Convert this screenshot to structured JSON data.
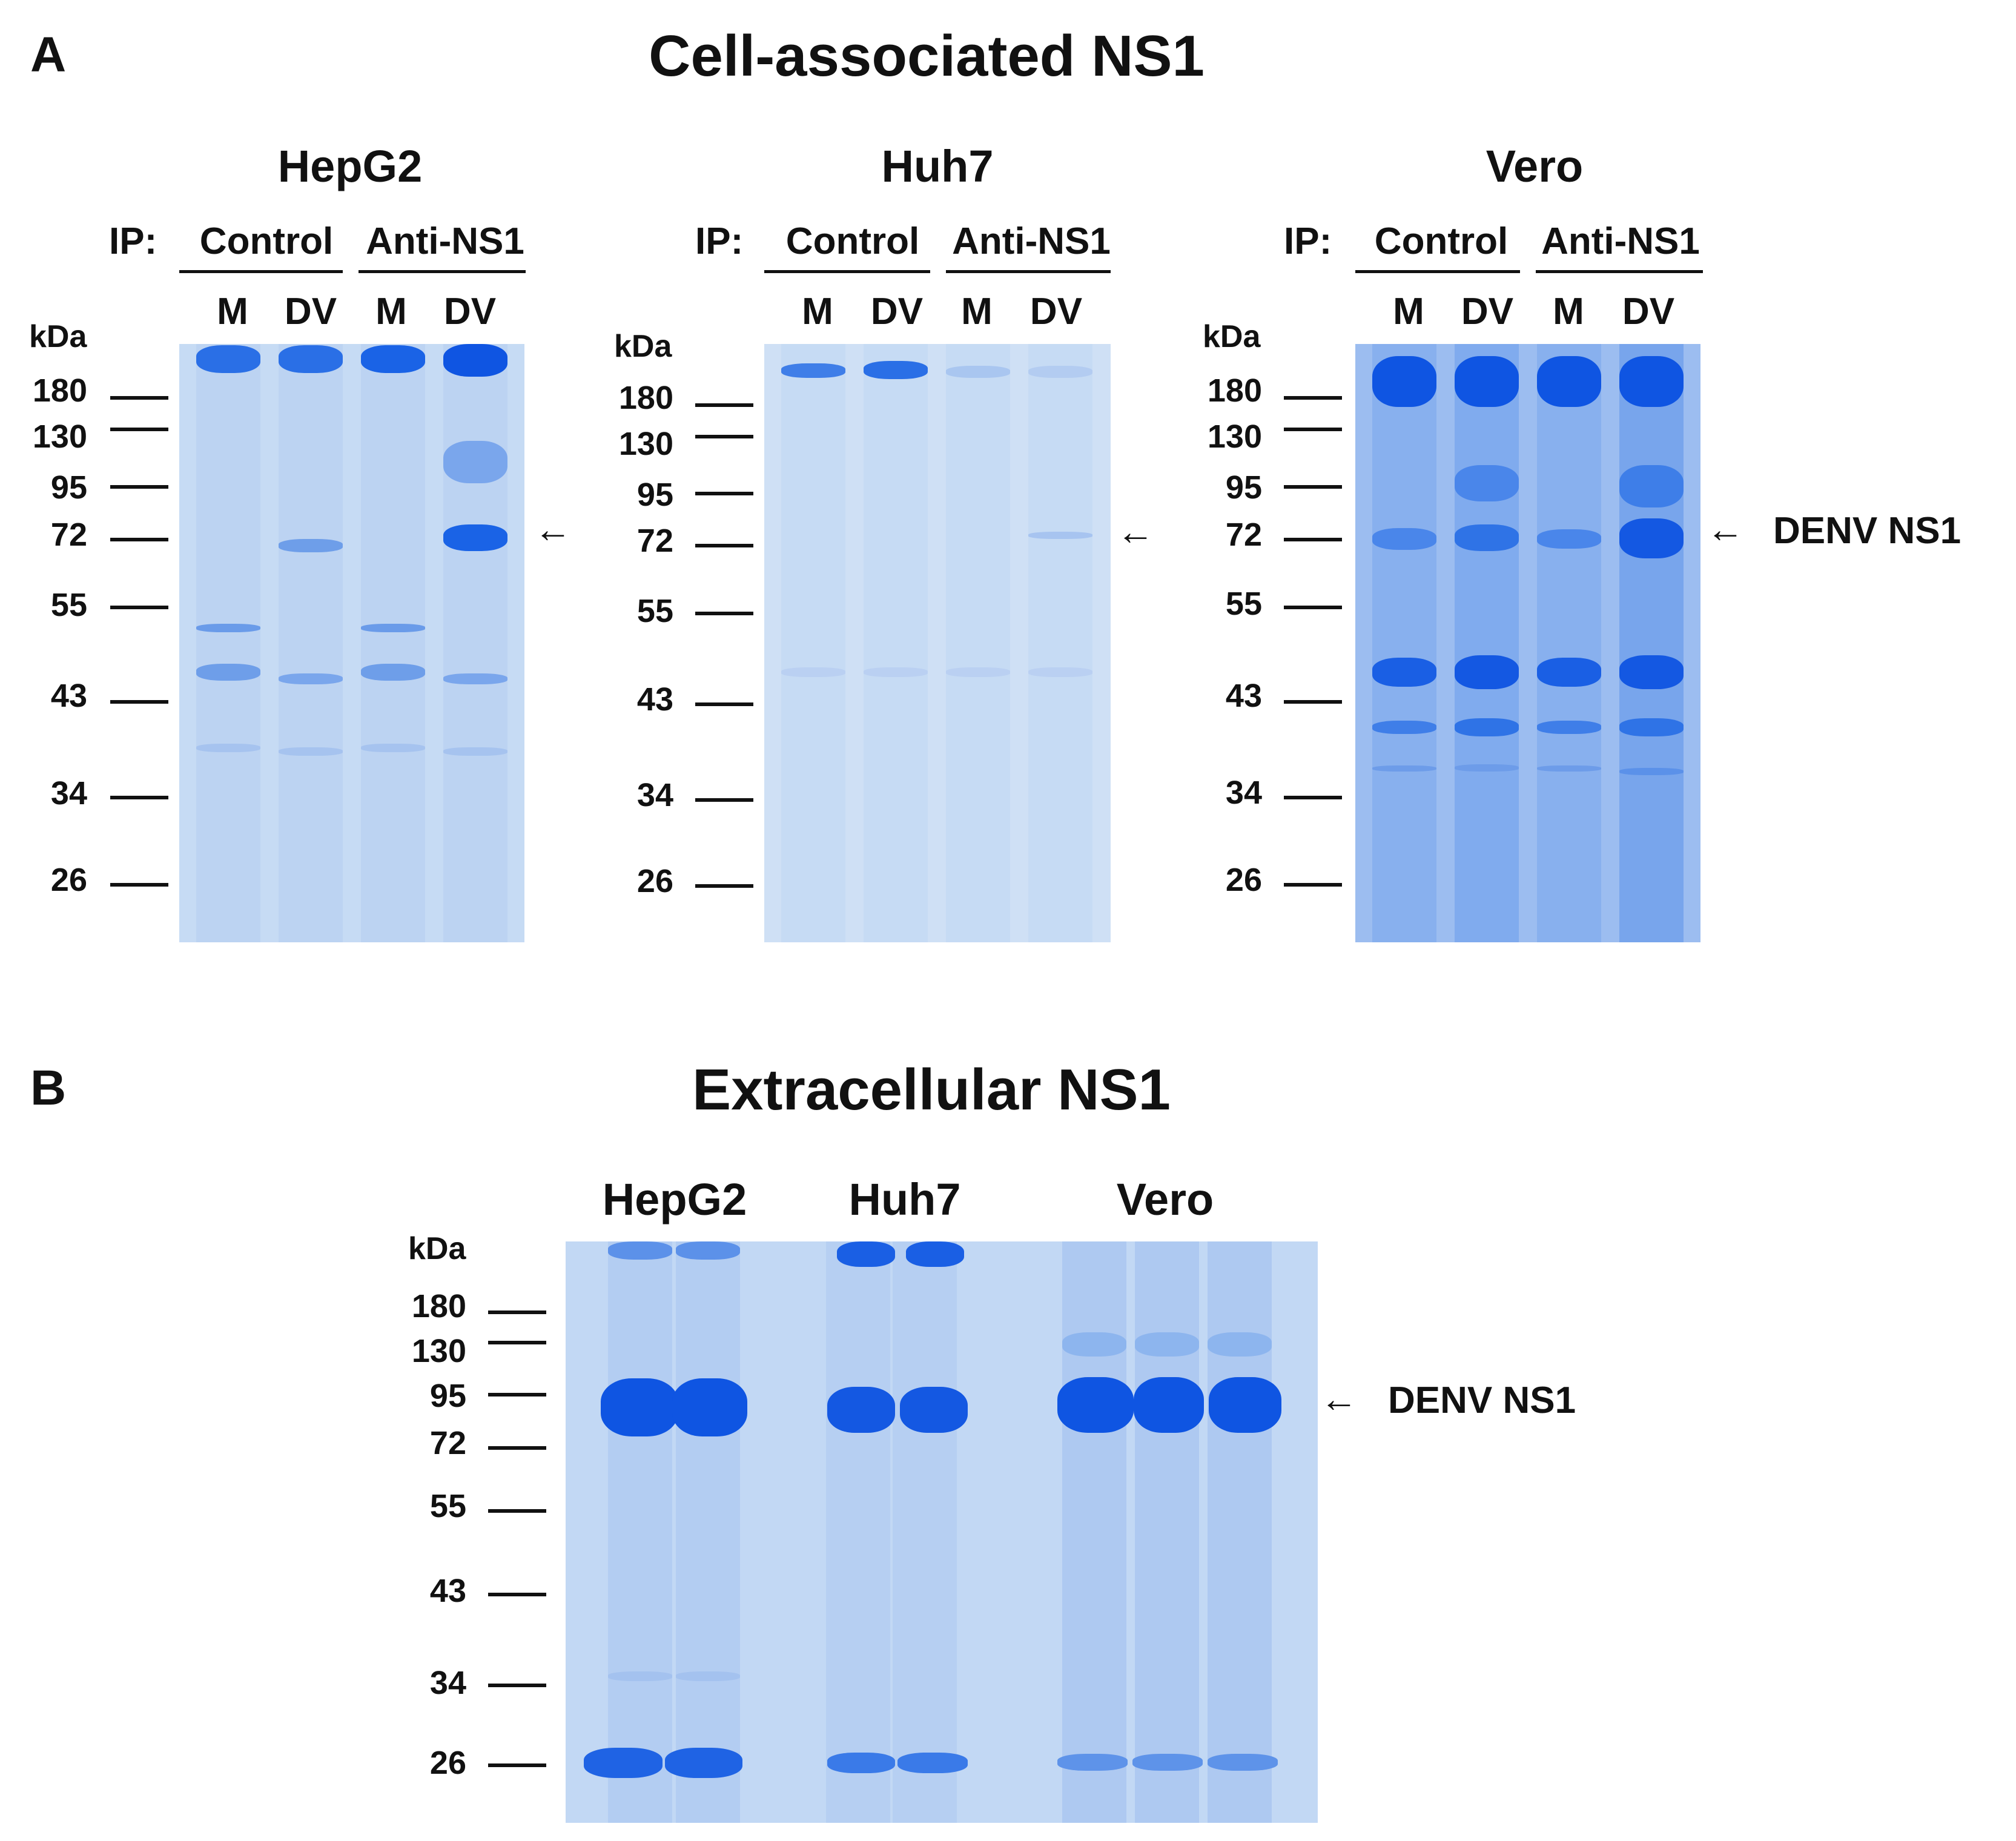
{
  "panels": {
    "a": {
      "letter": "A",
      "title": "Cell-associated NS1",
      "kda": "kDa",
      "ip_label": "IP:",
      "groups": [
        "Control",
        "Anti-NS1"
      ],
      "lanes": [
        "M",
        "DV",
        "M",
        "DV"
      ],
      "markers": [
        "180",
        "130",
        "95",
        "72",
        "55",
        "43",
        "34",
        "26"
      ],
      "gels": [
        {
          "cell": "HepG2",
          "arrow": "←",
          "arrow_label": ""
        },
        {
          "cell": "Huh7",
          "arrow": "←",
          "arrow_label": ""
        },
        {
          "cell": "Vero",
          "arrow": "←",
          "arrow_label": "DENV NS1"
        }
      ]
    },
    "b": {
      "letter": "B",
      "title": "Extracellular NS1",
      "kda": "kDa",
      "cells": [
        "HepG2",
        "Huh7",
        "Vero"
      ],
      "markers": [
        "180",
        "130",
        "95",
        "72",
        "55",
        "43",
        "34",
        "26"
      ],
      "arrow": "←",
      "arrow_label": "DENV NS1"
    }
  },
  "colors": {
    "gel_bg": "#c9dcf3",
    "gel_lane": "#b9d1f1",
    "band_strong": "#1a63e6",
    "band_medium": "#4f8ae8",
    "band_faint": "#9fc0ee"
  }
}
